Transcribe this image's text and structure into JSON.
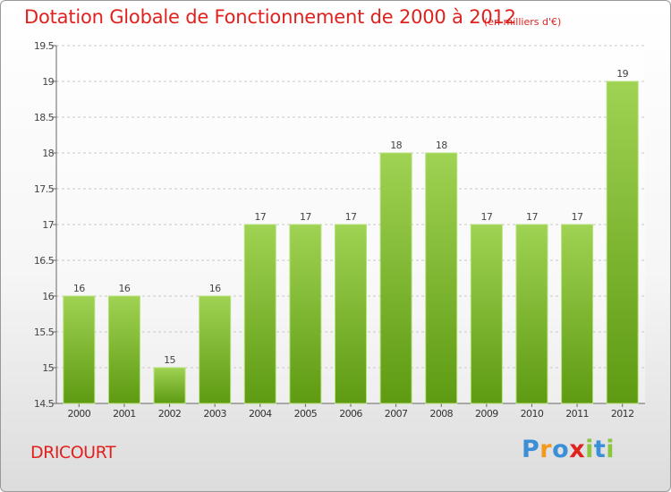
{
  "title": "Dotation Globale de Fonctionnement de 2000 à 2012",
  "subtitle": "(en milliers d'€)",
  "commune": "DRICOURT",
  "logo": {
    "text": "Proxiti",
    "letters": [
      {
        "char": "P",
        "color": "#3a8fd6"
      },
      {
        "char": "r",
        "color": "#f29a1d"
      },
      {
        "char": "o",
        "color": "#3a8fd6"
      },
      {
        "char": "x",
        "color": "#e0221f"
      },
      {
        "char": "i",
        "color": "#8cc63f"
      },
      {
        "char": "t",
        "color": "#3a8fd6"
      },
      {
        "char": "i",
        "color": "#8cc63f"
      }
    ]
  },
  "colors": {
    "title": "#e0221f",
    "bar_light": "#9fd353",
    "bar_dark": "#5e9a12",
    "grid": "#c8c8c8"
  },
  "chart_data": {
    "type": "bar",
    "title": "Dotation Globale de Fonctionnement de 2000 à 2012",
    "xlabel": "",
    "ylabel": "",
    "categories": [
      "2000",
      "2001",
      "2002",
      "2003",
      "2004",
      "2005",
      "2006",
      "2007",
      "2008",
      "2009",
      "2010",
      "2011",
      "2012"
    ],
    "values": [
      16,
      16,
      15,
      16,
      17,
      17,
      17,
      18,
      18,
      17,
      17,
      17,
      19
    ],
    "data_labels": [
      "16",
      "16",
      "15",
      "16",
      "17",
      "17",
      "17",
      "18",
      "18",
      "17",
      "17",
      "17",
      "19"
    ],
    "ylim": [
      14.5,
      19.5
    ],
    "yticks": [
      14.5,
      15,
      15.5,
      16,
      16.5,
      17,
      17.5,
      18,
      18.5,
      19,
      19.5
    ],
    "ytick_labels": [
      "14.5",
      "15",
      "15.5",
      "16",
      "16.5",
      "17",
      "17.5",
      "18",
      "18.5",
      "19",
      "19.5"
    ],
    "grid": true
  }
}
